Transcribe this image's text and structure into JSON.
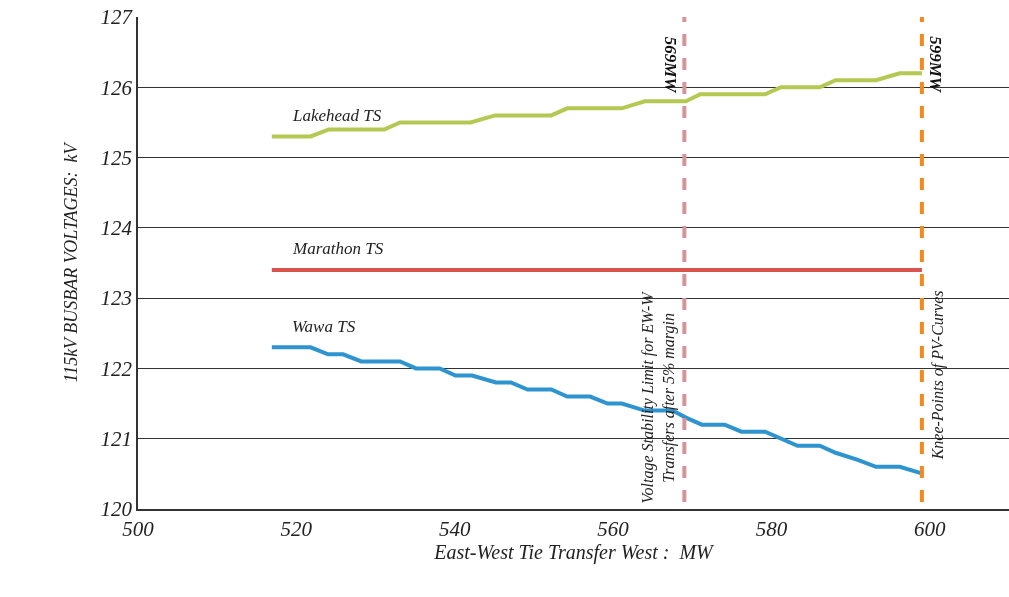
{
  "chart_data": {
    "type": "line",
    "xlabel": "East-West Tie Transfer West :  MW",
    "ylabel": "115kV BUSBAR VOLTAGES:  kV",
    "xlim": [
      500,
      610
    ],
    "xticks": [
      500,
      520,
      540,
      560,
      580,
      600
    ],
    "ylim": [
      120,
      127
    ],
    "yticks": [
      120,
      121,
      122,
      123,
      124,
      125,
      126,
      127
    ],
    "grid": "y",
    "legend": false,
    "marker": "none",
    "line_style": "solid",
    "series": [
      {
        "name": "Lakehead TS",
        "color": "#b5c952",
        "x": [
          516.9,
          521.8,
          524.1,
          531.1,
          533.1,
          542.0,
          545.1,
          552.2,
          554.2,
          561.1,
          564.0,
          569.2,
          571.0,
          579.2,
          581.2,
          586.1,
          588.1,
          593.2,
          596.2,
          599
        ],
        "values": [
          125.3,
          125.3,
          125.4,
          125.4,
          125.5,
          125.5,
          125.6,
          125.6,
          125.7,
          125.7,
          125.8,
          125.8,
          125.9,
          125.9,
          126.0,
          126.0,
          126.1,
          126.1,
          126.2,
          126.2
        ]
      },
      {
        "name": "Marathon TS",
        "color": "#d9534f",
        "x": [
          516.9,
          599
        ],
        "values": [
          123.4,
          123.4
        ]
      },
      {
        "name": "Wawa TS",
        "color": "#2e94cf",
        "x": [
          516.9,
          521.8,
          524.0,
          525.9,
          528.2,
          533.1,
          535.1,
          538.1,
          540.1,
          542.2,
          545.2,
          547.1,
          549.2,
          552.2,
          554.2,
          557.1,
          559.3,
          561.1,
          564.0,
          567.5,
          569.2,
          571.2,
          574.1,
          576.2,
          579.2,
          583.3,
          586.1,
          588.1,
          590.9,
          593.2,
          596.2,
          599.2
        ],
        "values": [
          122.3,
          122.3,
          122.2,
          122.2,
          122.1,
          122.1,
          122.0,
          122.0,
          121.9,
          121.9,
          121.8,
          121.8,
          121.7,
          121.7,
          121.6,
          121.6,
          121.5,
          121.5,
          121.4,
          121.4,
          121.3,
          121.2,
          121.2,
          121.1,
          121.1,
          120.9,
          120.9,
          120.8,
          120.7,
          120.6,
          120.6,
          120.5
        ]
      }
    ],
    "ref_lines": [
      {
        "axis": "x",
        "value": 569,
        "label": "569MW",
        "color": "#d4949a",
        "line_style": "dashed"
      },
      {
        "axis": "x",
        "value": 599,
        "label": "599MW",
        "color": "#f5891f",
        "line_style": "dashed"
      }
    ],
    "annotations": [
      {
        "text": "Voltage Stability Limit for EW-W\nTransfers after 5% margin",
        "x": 569,
        "y": 121.6
      },
      {
        "text": "Knee-Points of PV-Curves",
        "x": 599,
        "y": 121.9
      }
    ]
  }
}
